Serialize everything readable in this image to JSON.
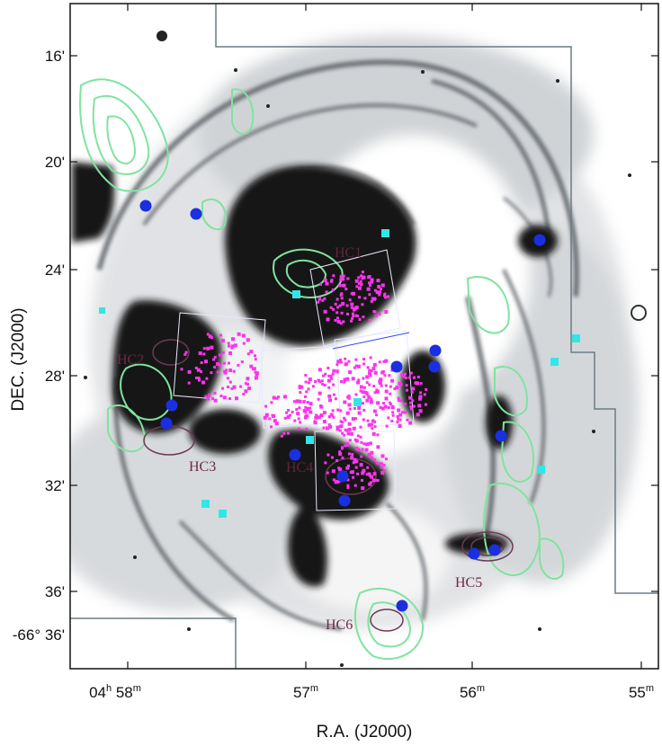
{
  "figure": {
    "x_axis_title": "R.A. (J2000)",
    "y_axis_title": "DEC. (J2000)",
    "x_tick_labels": [
      {
        "text": "04",
        "sup1": "h",
        "text2": " 58",
        "sup2": "m"
      },
      {
        "text": "57",
        "sup1": "m"
      },
      {
        "text": "56",
        "sup1": "m"
      },
      {
        "text": "55",
        "sup1": "m"
      }
    ],
    "y_tick_labels": [
      "16'",
      "20'",
      "24'",
      "28'",
      "32'",
      "36'"
    ],
    "y_tick_prefix": "-66° 36'",
    "region_labels": [
      "HC1",
      "HC2",
      "HC3",
      "HC4",
      "HC5",
      "HC6"
    ],
    "colors": {
      "background": "#ffffff",
      "nebula_dark": "#141414",
      "nebula_mid": "#8a8f96",
      "contour_green": "#7fe3a0",
      "contour_dark": "#6b3a55",
      "points_magenta": "#ff33ee",
      "markers_blue": "#1a2fe0",
      "markers_cyan": "#33e6e6",
      "frame": "#6b7b84"
    },
    "marker_types": [
      "blue-circle",
      "cyan-square",
      "magenta-dot",
      "green-contour",
      "dark-contour"
    ]
  }
}
